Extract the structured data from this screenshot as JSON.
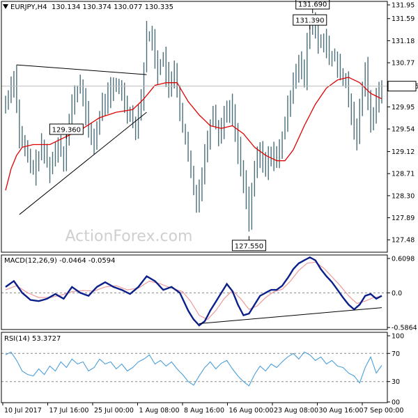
{
  "header": {
    "title": "EURJPY,H4",
    "ohlc": "130.134 130.374 130.077 130.335"
  },
  "watermark": "ActionForex.com",
  "colors": {
    "candle": "#4a6e7a",
    "ma": "#e00000",
    "macd_line": "#0a1f8a",
    "signal": "#ee9a9a",
    "rsi": "#4a9fd8",
    "trendline": "#000000",
    "grid": "#cfcfcf",
    "price_box_fill": "#ffffff",
    "frame": "#000000"
  },
  "chart_data": [
    {
      "id": "price",
      "type": "candlestick",
      "ylim": [
        127.25,
        131.91
      ],
      "yticks": [
        131.95,
        131.59,
        131.18,
        130.77,
        130.335,
        129.95,
        129.54,
        129.12,
        128.71,
        128.3,
        127.89,
        127.48
      ],
      "ytick_labels": [
        "131.95",
        "131.59",
        "131.18",
        "130.77",
        "130.335",
        "129.95",
        "129.54",
        "129.12",
        "128.71",
        "128.30",
        "127.89",
        "127.48"
      ],
      "current_price": 130.335,
      "xtick_labels": [
        "10 Jul 2017",
        "17 Jul 16:00",
        "25 Jul 00:00",
        "1 Aug 08:00",
        "8 Aug 16:00",
        "16 Aug 00:00",
        "23 Aug 08:00",
        "30 Aug 16:00",
        "7 Sep 00:00"
      ],
      "annotations": [
        {
          "label": "131.390",
          "value": 131.39
        },
        {
          "label": "131.690",
          "value": 131.69
        },
        {
          "label": "127.550",
          "value": 127.55
        },
        {
          "label": "129.360",
          "value": 129.36
        }
      ],
      "anchors": [
        [
          0,
          130.0
        ],
        [
          3,
          130.55
        ],
        [
          5,
          129.4
        ],
        [
          8,
          129.0
        ],
        [
          10,
          128.75
        ],
        [
          13,
          129.2
        ],
        [
          16,
          128.8
        ],
        [
          19,
          129.3
        ],
        [
          21,
          129.0
        ],
        [
          24,
          130.0
        ],
        [
          27,
          130.4
        ],
        [
          30,
          129.5
        ],
        [
          32,
          129.3
        ],
        [
          35,
          130.0
        ],
        [
          38,
          130.25
        ],
        [
          41,
          130.35
        ],
        [
          44,
          129.9
        ],
        [
          47,
          129.6
        ],
        [
          49,
          130.1
        ],
        [
          51,
          131.3
        ],
        [
          53,
          131.2
        ],
        [
          55,
          130.6
        ],
        [
          57,
          130.9
        ],
        [
          59,
          130.2
        ],
        [
          61,
          130.7
        ],
        [
          63,
          129.8
        ],
        [
          65,
          129.3
        ],
        [
          67,
          128.7
        ],
        [
          69,
          128.2
        ],
        [
          71,
          128.7
        ],
        [
          73,
          129.4
        ],
        [
          75,
          129.9
        ],
        [
          77,
          129.4
        ],
        [
          79,
          129.8
        ],
        [
          81,
          130.0
        ],
        [
          83,
          129.5
        ],
        [
          85,
          128.8
        ],
        [
          87,
          128.3
        ],
        [
          88,
          127.9
        ],
        [
          90,
          128.8
        ],
        [
          92,
          129.1
        ],
        [
          94,
          128.8
        ],
        [
          96,
          129.15
        ],
        [
          98,
          128.9
        ],
        [
          100,
          129.4
        ],
        [
          102,
          129.9
        ],
        [
          104,
          130.5
        ],
        [
          106,
          130.8
        ],
        [
          108,
          130.4
        ],
        [
          109,
          131.2
        ],
        [
          111,
          131.55
        ],
        [
          113,
          131.1
        ],
        [
          115,
          131.25
        ],
        [
          117,
          130.8
        ],
        [
          119,
          130.9
        ],
        [
          121,
          130.5
        ],
        [
          123,
          130.4
        ],
        [
          125,
          129.8
        ],
        [
          127,
          129.4
        ],
        [
          129,
          130.35
        ],
        [
          130,
          130.7
        ],
        [
          132,
          129.6
        ],
        [
          134,
          130.05
        ],
        [
          136,
          130.335
        ]
      ],
      "ma_anchors": [
        [
          0,
          128.4
        ],
        [
          2,
          128.8
        ],
        [
          4,
          129.05
        ],
        [
          6,
          129.2
        ],
        [
          10,
          129.25
        ],
        [
          16,
          129.25
        ],
        [
          22,
          129.4
        ],
        [
          28,
          129.55
        ],
        [
          34,
          129.75
        ],
        [
          40,
          129.85
        ],
        [
          46,
          129.9
        ],
        [
          50,
          130.1
        ],
        [
          54,
          130.35
        ],
        [
          58,
          130.4
        ],
        [
          62,
          130.4
        ],
        [
          66,
          130.05
        ],
        [
          70,
          129.8
        ],
        [
          74,
          129.6
        ],
        [
          78,
          129.55
        ],
        [
          82,
          129.6
        ],
        [
          86,
          129.45
        ],
        [
          90,
          129.2
        ],
        [
          94,
          129.05
        ],
        [
          98,
          128.95
        ],
        [
          101,
          128.95
        ],
        [
          104,
          129.15
        ],
        [
          108,
          129.6
        ],
        [
          112,
          130.0
        ],
        [
          116,
          130.3
        ],
        [
          120,
          130.45
        ],
        [
          124,
          130.5
        ],
        [
          128,
          130.4
        ],
        [
          132,
          130.2
        ],
        [
          136,
          130.1
        ]
      ],
      "trendlines": [
        {
          "from": [
            4,
            130.73
          ],
          "to": [
            51,
            130.55
          ]
        },
        {
          "from": [
            5,
            127.95
          ],
          "to": [
            51,
            129.85
          ]
        }
      ]
    },
    {
      "id": "macd",
      "type": "line",
      "title": "MACD(12,26,9) -0.0464 -0.0594",
      "ylim": [
        -0.62,
        0.64
      ],
      "yticks": [
        0.6098,
        0.0,
        -0.5864
      ],
      "ytick_labels": [
        "0.6098",
        "0.0",
        "-0.5864"
      ],
      "macd_anchors": [
        [
          0,
          0.1
        ],
        [
          3,
          0.2
        ],
        [
          6,
          0.0
        ],
        [
          9,
          -0.12
        ],
        [
          12,
          -0.14
        ],
        [
          15,
          -0.1
        ],
        [
          18,
          -0.02
        ],
        [
          21,
          -0.1
        ],
        [
          24,
          0.1
        ],
        [
          27,
          0.0
        ],
        [
          30,
          -0.05
        ],
        [
          33,
          0.1
        ],
        [
          36,
          0.18
        ],
        [
          39,
          0.1
        ],
        [
          42,
          0.05
        ],
        [
          45,
          -0.02
        ],
        [
          48,
          0.1
        ],
        [
          51,
          0.28
        ],
        [
          54,
          0.2
        ],
        [
          57,
          0.05
        ],
        [
          60,
          0.1
        ],
        [
          63,
          0.0
        ],
        [
          66,
          -0.3
        ],
        [
          68,
          -0.45
        ],
        [
          70,
          -0.55
        ],
        [
          72,
          -0.48
        ],
        [
          74,
          -0.3
        ],
        [
          76,
          -0.15
        ],
        [
          78,
          0.0
        ],
        [
          80,
          0.15
        ],
        [
          82,
          0.03
        ],
        [
          84,
          -0.2
        ],
        [
          86,
          -0.38
        ],
        [
          88,
          -0.35
        ],
        [
          90,
          -0.2
        ],
        [
          92,
          -0.05
        ],
        [
          94,
          0.0
        ],
        [
          96,
          0.05
        ],
        [
          98,
          0.05
        ],
        [
          100,
          0.12
        ],
        [
          102,
          0.25
        ],
        [
          104,
          0.4
        ],
        [
          106,
          0.5
        ],
        [
          108,
          0.55
        ],
        [
          110,
          0.6
        ],
        [
          112,
          0.55
        ],
        [
          114,
          0.4
        ],
        [
          116,
          0.28
        ],
        [
          118,
          0.18
        ],
        [
          120,
          0.05
        ],
        [
          122,
          -0.08
        ],
        [
          124,
          -0.2
        ],
        [
          126,
          -0.28
        ],
        [
          128,
          -0.2
        ],
        [
          130,
          -0.05
        ],
        [
          132,
          -0.02
        ],
        [
          134,
          -0.1
        ],
        [
          136,
          -0.05
        ]
      ],
      "signal_anchors": [
        [
          0,
          0.05
        ],
        [
          4,
          0.12
        ],
        [
          8,
          0.0
        ],
        [
          12,
          -0.08
        ],
        [
          16,
          -0.08
        ],
        [
          20,
          -0.04
        ],
        [
          24,
          0.02
        ],
        [
          28,
          0.04
        ],
        [
          32,
          0.03
        ],
        [
          36,
          0.1
        ],
        [
          40,
          0.12
        ],
        [
          44,
          0.05
        ],
        [
          48,
          0.08
        ],
        [
          52,
          0.2
        ],
        [
          56,
          0.15
        ],
        [
          60,
          0.08
        ],
        [
          64,
          0.02
        ],
        [
          67,
          -0.15
        ],
        [
          70,
          -0.38
        ],
        [
          73,
          -0.45
        ],
        [
          76,
          -0.3
        ],
        [
          79,
          -0.1
        ],
        [
          82,
          0.04
        ],
        [
          85,
          -0.1
        ],
        [
          88,
          -0.28
        ],
        [
          91,
          -0.22
        ],
        [
          94,
          -0.08
        ],
        [
          97,
          0.02
        ],
        [
          100,
          0.06
        ],
        [
          103,
          0.2
        ],
        [
          106,
          0.38
        ],
        [
          109,
          0.5
        ],
        [
          112,
          0.52
        ],
        [
          115,
          0.42
        ],
        [
          118,
          0.27
        ],
        [
          121,
          0.12
        ],
        [
          124,
          -0.05
        ],
        [
          127,
          -0.18
        ],
        [
          130,
          -0.14
        ],
        [
          133,
          -0.08
        ],
        [
          136,
          -0.06
        ]
      ],
      "trendline": {
        "from": [
          70,
          -0.52
        ],
        "to": [
          136,
          -0.25
        ]
      }
    },
    {
      "id": "rsi",
      "type": "line",
      "title": "RSI(14) 53.3727",
      "ylim": [
        0,
        100
      ],
      "yticks": [
        100,
        70,
        30,
        0
      ],
      "ytick_labels": [
        "100",
        "70",
        "30",
        "00"
      ],
      "levels": [
        70,
        30
      ],
      "rsi_anchors": [
        [
          0,
          68
        ],
        [
          2,
          72
        ],
        [
          4,
          60
        ],
        [
          6,
          45
        ],
        [
          8,
          40
        ],
        [
          10,
          38
        ],
        [
          12,
          48
        ],
        [
          14,
          40
        ],
        [
          16,
          52
        ],
        [
          18,
          45
        ],
        [
          20,
          58
        ],
        [
          22,
          50
        ],
        [
          24,
          62
        ],
        [
          26,
          55
        ],
        [
          28,
          58
        ],
        [
          30,
          45
        ],
        [
          32,
          50
        ],
        [
          34,
          62
        ],
        [
          36,
          55
        ],
        [
          38,
          58
        ],
        [
          40,
          48
        ],
        [
          42,
          55
        ],
        [
          44,
          45
        ],
        [
          46,
          50
        ],
        [
          48,
          58
        ],
        [
          50,
          62
        ],
        [
          52,
          68
        ],
        [
          54,
          55
        ],
        [
          56,
          60
        ],
        [
          58,
          52
        ],
        [
          60,
          58
        ],
        [
          62,
          48
        ],
        [
          64,
          40
        ],
        [
          66,
          30
        ],
        [
          68,
          25
        ],
        [
          70,
          38
        ],
        [
          72,
          50
        ],
        [
          74,
          58
        ],
        [
          76,
          48
        ],
        [
          78,
          56
        ],
        [
          80,
          60
        ],
        [
          82,
          48
        ],
        [
          84,
          38
        ],
        [
          86,
          30
        ],
        [
          88,
          24
        ],
        [
          90,
          40
        ],
        [
          92,
          52
        ],
        [
          94,
          45
        ],
        [
          96,
          55
        ],
        [
          98,
          50
        ],
        [
          100,
          58
        ],
        [
          102,
          65
        ],
        [
          104,
          70
        ],
        [
          106,
          62
        ],
        [
          108,
          72
        ],
        [
          110,
          68
        ],
        [
          112,
          60
        ],
        [
          114,
          65
        ],
        [
          116,
          55
        ],
        [
          118,
          60
        ],
        [
          120,
          52
        ],
        [
          122,
          50
        ],
        [
          124,
          42
        ],
        [
          126,
          38
        ],
        [
          128,
          28
        ],
        [
          130,
          50
        ],
        [
          132,
          65
        ],
        [
          134,
          42
        ],
        [
          136,
          53
        ]
      ]
    }
  ]
}
